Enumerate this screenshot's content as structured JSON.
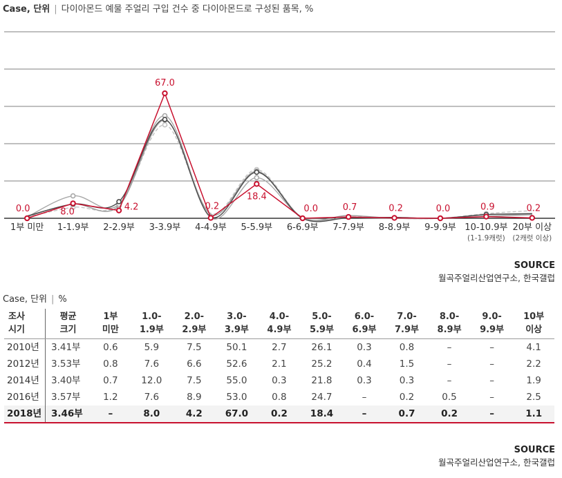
{
  "chart_header": {
    "unit": "Case, 단위",
    "separator": "|",
    "title": "다이아몬드 예물 주얼리 구입 건수 중 다이아몬드로 구성된 품목, %"
  },
  "chart_data": {
    "type": "line",
    "title": "다이아몬드 예물 주얼리 구입 건수 중 다이아몬드로 구성된 품목, %",
    "categories": [
      [
        "1부 미만"
      ],
      [
        "1-1.9부"
      ],
      [
        "2-2.9부"
      ],
      [
        "3-3.9부"
      ],
      [
        "4-4.9부"
      ],
      [
        "5-5.9부"
      ],
      [
        "6-6.9부"
      ],
      [
        "7-7.9부"
      ],
      [
        "8-8.9부"
      ],
      [
        "9-9.9부"
      ],
      [
        "10-10.9부",
        "(1-1.9캐럿)"
      ],
      [
        "20부 이상",
        "(2캐럿 이상)"
      ]
    ],
    "ylim": [
      0,
      100
    ],
    "grid": true,
    "series": [
      {
        "name": "2010년",
        "color": "#c3c3c3",
        "dashed": true,
        "values": [
          0.6,
          5.9,
          7.5,
          50.1,
          2.7,
          26.1,
          0.3,
          0.8,
          0,
          0,
          2.5,
          4.1
        ]
      },
      {
        "name": "2012년",
        "color": "#9a9a9a",
        "dashed": false,
        "values": [
          0.8,
          7.6,
          6.6,
          52.6,
          2.1,
          25.2,
          0.4,
          1.5,
          0,
          0,
          1.8,
          2.2
        ]
      },
      {
        "name": "2014년",
        "color": "#a8a8a8",
        "dashed": false,
        "values": [
          0.7,
          12.0,
          7.5,
          55.0,
          0.3,
          21.8,
          0.3,
          0.3,
          0,
          0,
          1.0,
          1.9
        ]
      },
      {
        "name": "2016년",
        "color": "#4a4a4a",
        "dashed": false,
        "values": [
          1.2,
          7.6,
          8.9,
          53.0,
          0.8,
          24.7,
          0,
          0.2,
          0.5,
          0,
          2.0,
          2.5
        ]
      },
      {
        "name": "2018년",
        "color": "#c8102e",
        "dashed": false,
        "highlight": true,
        "values": [
          0.0,
          8.0,
          4.2,
          67.0,
          0.2,
          18.4,
          0.0,
          0.7,
          0.2,
          0.0,
          0.9,
          0.2
        ],
        "labels": [
          "0.0",
          "8.0",
          "4.2",
          "67.0",
          "0.2",
          "18.4",
          "0.0",
          "0.7",
          "0.2",
          "0.0",
          "0.9",
          "0.2"
        ]
      }
    ]
  },
  "source1": {
    "label": "SOURCE",
    "text": "월곡주얼리산업연구소, 한국갤럽"
  },
  "table_header": {
    "unit": "Case, 단위",
    "separator": "|",
    "suffix": "%"
  },
  "table": {
    "headers": [
      [
        "조사",
        "시기"
      ],
      [
        "평균",
        "크기"
      ],
      [
        "1부",
        "미만"
      ],
      [
        "1.0-",
        "1.9부"
      ],
      [
        "2.0-",
        "2.9부"
      ],
      [
        "3.0-",
        "3.9부"
      ],
      [
        "4.0-",
        "4.9부"
      ],
      [
        "5.0-",
        "5.9부"
      ],
      [
        "6.0-",
        "6.9부"
      ],
      [
        "7.0-",
        "7.9부"
      ],
      [
        "8.0-",
        "8.9부"
      ],
      [
        "9.0-",
        "9.9부"
      ],
      [
        "10부",
        "이상"
      ]
    ],
    "rows": [
      [
        "2010년",
        "3.41부",
        "0.6",
        "5.9",
        "7.5",
        "50.1",
        "2.7",
        "26.1",
        "0.3",
        "0.8",
        "–",
        "–",
        "4.1"
      ],
      [
        "2012년",
        "3.53부",
        "0.8",
        "7.6",
        "6.6",
        "52.6",
        "2.1",
        "25.2",
        "0.4",
        "1.5",
        "–",
        "–",
        "2.2"
      ],
      [
        "2014년",
        "3.40부",
        "0.7",
        "12.0",
        "7.5",
        "55.0",
        "0.3",
        "21.8",
        "0.3",
        "0.3",
        "–",
        "–",
        "1.9"
      ],
      [
        "2016년",
        "3.57부",
        "1.2",
        "7.6",
        "8.9",
        "53.0",
        "0.8",
        "24.7",
        "–",
        "0.2",
        "0.5",
        "–",
        "2.5"
      ],
      [
        "2018년",
        "3.46부",
        "–",
        "8.0",
        "4.2",
        "67.0",
        "0.2",
        "18.4",
        "–",
        "0.7",
        "0.2",
        "–",
        "1.1"
      ]
    ]
  },
  "source2": {
    "label": "SOURCE",
    "text": "월곡주얼리산업연구소, 한국갤럽"
  }
}
